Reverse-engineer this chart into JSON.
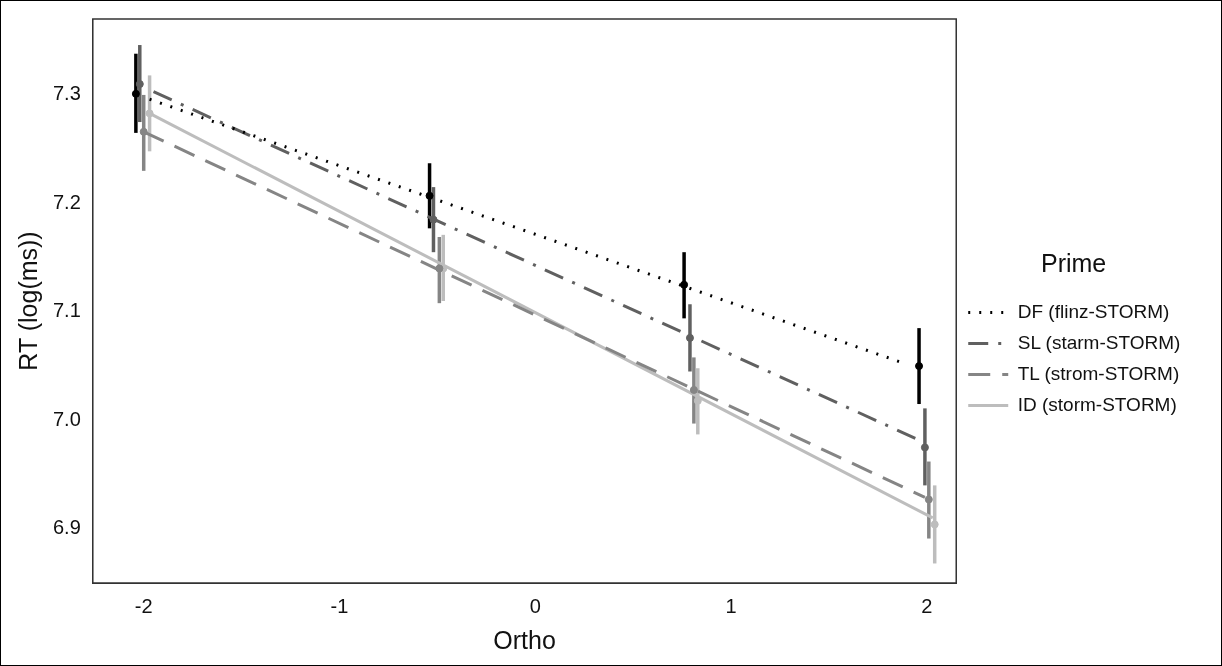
{
  "chart_data": {
    "type": "line",
    "xlabel": "Ortho",
    "ylabel": "RT (log(ms))",
    "legend_title": "Prime",
    "xlim": [
      -2.26,
      2.15
    ],
    "xticks": [
      -2,
      -1,
      0,
      1,
      2
    ],
    "ylim": [
      6.85,
      7.37
    ],
    "yticks": [
      6.9,
      {
        "value": 7.0,
        "label": "7.0"
      },
      7.1,
      7.2,
      7.3
    ],
    "grid": false,
    "legend": "right",
    "marker": "circle",
    "series": [
      {
        "type": "scatter",
        "color": "#000000",
        "x": [
          -2.04,
          -0.54,
          0.76,
          1.96
        ],
        "values": [
          7.301,
          7.207,
          7.125,
          7.05
        ],
        "errors": [
          [
            7.265,
            7.338
          ],
          [
            7.177,
            7.237
          ],
          [
            7.094,
            7.155
          ],
          [
            7.015,
            7.085
          ]
        ]
      },
      {
        "type": "scatter",
        "color": "#606060",
        "x": [
          -2.02,
          -0.52,
          0.79,
          1.99
        ],
        "values": [
          7.31,
          7.185,
          7.076,
          6.975
        ],
        "errors": [
          [
            7.275,
            7.346
          ],
          [
            7.155,
            7.215
          ],
          [
            7.045,
            7.107
          ],
          [
            6.94,
            7.011
          ]
        ]
      },
      {
        "type": "scatter",
        "color": "#858585",
        "x": [
          -2.0,
          -0.49,
          0.81,
          2.01
        ],
        "values": [
          7.266,
          7.14,
          7.028,
          6.927
        ],
        "errors": [
          [
            7.23,
            7.3
          ],
          [
            7.108,
            7.169
          ],
          [
            6.997,
            7.058
          ],
          [
            6.891,
            6.962
          ]
        ]
      },
      {
        "type": "scatter",
        "color": "#bdbdbd",
        "x": [
          -1.97,
          -0.47,
          0.83,
          2.04
        ],
        "values": [
          7.283,
          7.14,
          7.018,
          6.904
        ],
        "errors": [
          [
            7.248,
            7.318
          ],
          [
            7.11,
            7.171
          ],
          [
            6.987,
            7.048
          ],
          [
            6.868,
            6.94
          ]
        ]
      },
      {
        "marker": "none",
        "name": "DF (flinz-STORM)",
        "color": "#000000",
        "line_style": "dotted",
        "x": [
          -1.97,
          1.86
        ],
        "values": [
          7.296,
          7.054
        ]
      },
      {
        "marker": "none",
        "name": "SL (starm-STORM)",
        "color": "#606060",
        "line_style": "dashdot",
        "x": [
          -1.95,
          1.97
        ],
        "values": [
          7.303,
          6.981
        ]
      },
      {
        "marker": "none",
        "name": "TL (strom-STORM)",
        "color": "#858585",
        "line_style": "dashed",
        "x": [
          -2.0,
          1.99
        ],
        "values": [
          7.266,
          6.929
        ]
      },
      {
        "marker": "none",
        "name": "ID (storm-STORM)",
        "color": "#bdbdbd",
        "line_style": "solid",
        "x": [
          -1.97,
          2.03
        ],
        "values": [
          7.283,
          6.91
        ]
      }
    ]
  }
}
